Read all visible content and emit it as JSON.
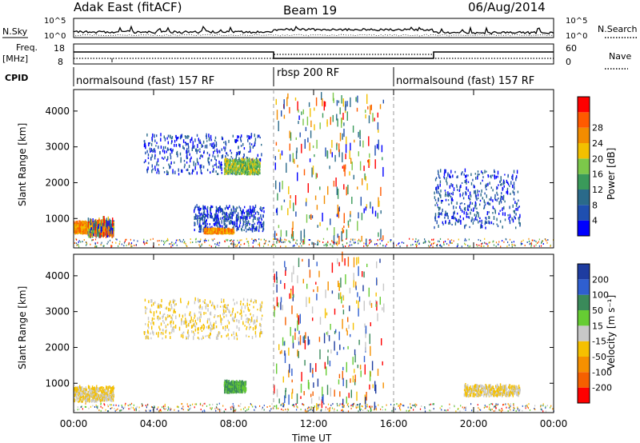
{
  "header": {
    "station": "Adak East (fitACF)",
    "beam": "Beam 19",
    "date": "06/Aug/2014"
  },
  "noise_panel": {
    "left_label": "N.Sky",
    "right_label": "N.Search",
    "tick_top": "10^5",
    "tick_bottom": "10^0"
  },
  "freq_panel": {
    "left_label_1": "Freq.",
    "left_label_2": "[MHz]",
    "right_label": "Nave",
    "left_ticks": [
      "18",
      "8"
    ],
    "right_ticks": [
      "60",
      "0"
    ]
  },
  "cpid_panel": {
    "label": "CPID",
    "segments": [
      {
        "name": "normalsound (fast) 157 RF",
        "start": 0,
        "end": 10
      },
      {
        "name": "rbsp 200 RF",
        "start": 10,
        "end": 16
      },
      {
        "name": "normalsound (fast) 157 RF",
        "start": 16,
        "end": 24
      }
    ]
  },
  "colors": {
    "power": [
      "#0000ff",
      "#1f4fb0",
      "#2a6a8a",
      "#3a9a5a",
      "#7cc84a",
      "#f2c000",
      "#f28c00",
      "#ff5a00",
      "#ff0000"
    ],
    "velocity": [
      "#1e3ca0",
      "#2f5fd0",
      "#3a8a5a",
      "#66cc33",
      "#c8c8c8",
      "#f5c000",
      "#f59000",
      "#f56000",
      "#ff0000"
    ]
  },
  "chart_data": [
    {
      "type": "heatmap",
      "title": "Power",
      "xlabel": "",
      "ylabel": "Slant Range [km]",
      "xlim": [
        0,
        24
      ],
      "ylim": [
        180,
        4600
      ],
      "x_ticks": [
        "00:00",
        "04:00",
        "08:00",
        "12:00",
        "16:00",
        "20:00",
        "00:00"
      ],
      "y_ticks": [
        1000,
        2000,
        3000,
        4000
      ],
      "colorbar": {
        "label": "Power [dB]",
        "ticks": [
          4,
          8,
          12,
          16,
          20,
          24,
          28
        ]
      },
      "regions": [
        {
          "t": [
            0,
            0.7
          ],
          "r": [
            550,
            850
          ],
          "value": "high"
        },
        {
          "t": [
            0.7,
            2
          ],
          "r": [
            450,
            800
          ],
          "value": "mixed"
        },
        {
          "t": [
            3.5,
            9.4
          ],
          "r": [
            2200,
            3300
          ],
          "value": "low"
        },
        {
          "t": [
            7.5,
            9.3
          ],
          "r": [
            2200,
            2600
          ],
          "value": "mid"
        },
        {
          "t": [
            6,
            9.5
          ],
          "r": [
            600,
            1300
          ],
          "value": "low"
        },
        {
          "t": [
            6.5,
            8
          ],
          "r": [
            550,
            650
          ],
          "value": "high"
        },
        {
          "t": [
            10,
            15.5
          ],
          "r": [
            200,
            4400
          ],
          "value": "sparse"
        },
        {
          "t": [
            18,
            22.3
          ],
          "r": [
            700,
            2300
          ],
          "value": "low"
        }
      ]
    },
    {
      "type": "heatmap",
      "title": "Velocity",
      "xlabel": "Time UT",
      "ylabel": "Slant Range [km]",
      "xlim": [
        0,
        24
      ],
      "ylim": [
        180,
        4600
      ],
      "x_ticks": [
        "00:00",
        "04:00",
        "08:00",
        "12:00",
        "16:00",
        "20:00",
        "00:00"
      ],
      "y_ticks": [
        1000,
        2000,
        3000,
        4000
      ],
      "colorbar": {
        "label": "Velocity [m s⁻¹]",
        "ticks": [
          "200",
          "100",
          "50",
          "15",
          "-15",
          "-50",
          "-100",
          "-200"
        ]
      },
      "regions": [
        {
          "t": [
            0,
            2
          ],
          "r": [
            450,
            850
          ],
          "value": "near-zero"
        },
        {
          "t": [
            3.5,
            9.4
          ],
          "r": [
            2200,
            3300
          ],
          "value": "near-zero"
        },
        {
          "t": [
            7.5,
            8.6
          ],
          "r": [
            700,
            1000
          ],
          "value": "positive"
        },
        {
          "t": [
            10,
            15.5
          ],
          "r": [
            200,
            4400
          ],
          "value": "mixed"
        },
        {
          "t": [
            19.5,
            22.3
          ],
          "r": [
            600,
            900
          ],
          "value": "near-zero"
        }
      ]
    }
  ]
}
